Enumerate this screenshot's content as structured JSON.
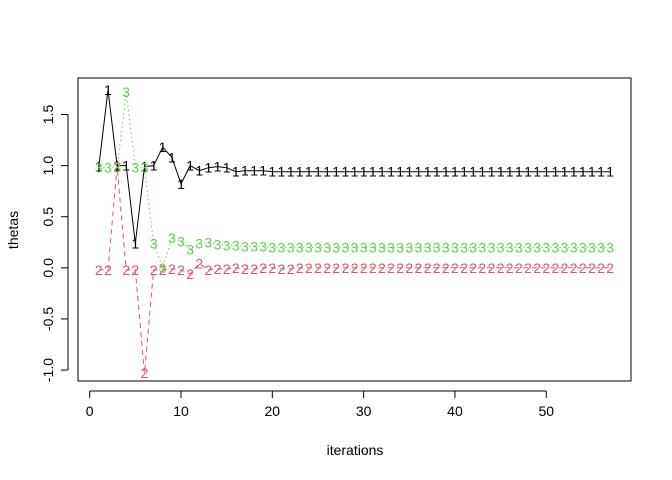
{
  "chart_data": {
    "type": "line",
    "title": "",
    "xlabel": "iterations",
    "ylabel": "thetas",
    "xlim": [
      0,
      57
    ],
    "ylim": [
      -1.05,
      1.8
    ],
    "x_ticks": [
      0,
      10,
      20,
      30,
      40,
      50
    ],
    "y_ticks": [
      -1.0,
      -0.5,
      0.0,
      0.5,
      1.0,
      1.5
    ],
    "x_tick_labels": [
      "0",
      "10",
      "20",
      "30",
      "40",
      "50"
    ],
    "y_tick_labels": [
      "-1.0",
      "-0.5",
      "0.0",
      "0.5",
      "1.0",
      "1.5"
    ],
    "grid": false,
    "legend": "none",
    "series": [
      {
        "marker": "1",
        "color": "#000000",
        "line_style": "solid",
        "x": [
          1,
          2,
          3,
          4,
          5,
          6,
          7,
          8,
          9,
          10,
          11,
          12,
          13,
          14,
          15,
          16,
          17,
          18,
          19,
          20,
          21,
          22,
          23,
          24,
          25,
          26,
          27,
          28,
          29,
          30,
          31,
          32,
          33,
          34,
          35,
          36,
          37,
          38,
          39,
          40,
          41,
          42,
          43,
          44,
          45,
          46,
          47,
          48,
          49,
          50,
          51,
          52,
          53,
          54,
          55,
          56,
          57
        ],
        "values": [
          0.99,
          1.74,
          1.0,
          1.0,
          0.24,
          0.99,
          1.0,
          1.18,
          1.08,
          0.82,
          1.0,
          0.95,
          0.98,
          0.99,
          0.98,
          0.94,
          0.95,
          0.95,
          0.95,
          0.94,
          0.94,
          0.94,
          0.94,
          0.94,
          0.94,
          0.94,
          0.94,
          0.94,
          0.94,
          0.94,
          0.94,
          0.94,
          0.94,
          0.94,
          0.94,
          0.94,
          0.94,
          0.94,
          0.94,
          0.94,
          0.94,
          0.94,
          0.94,
          0.94,
          0.94,
          0.94,
          0.94,
          0.94,
          0.94,
          0.94,
          0.94,
          0.94,
          0.94,
          0.94,
          0.94,
          0.94,
          0.94
        ]
      },
      {
        "marker": "2",
        "color": "#DF536B",
        "line_style": "dashed",
        "x": [
          1,
          2,
          3,
          4,
          5,
          6,
          7,
          8,
          9,
          10,
          11,
          12,
          13,
          14,
          15,
          16,
          17,
          18,
          19,
          20,
          21,
          22,
          23,
          24,
          25,
          26,
          27,
          28,
          29,
          30,
          31,
          32,
          33,
          34,
          35,
          36,
          37,
          38,
          39,
          40,
          41,
          42,
          43,
          44,
          45,
          46,
          47,
          48,
          49,
          50,
          51,
          52,
          53,
          54,
          55,
          56,
          57
        ],
        "values": [
          -0.02,
          -0.02,
          0.99,
          -0.02,
          -0.02,
          -1.03,
          -0.02,
          -0.02,
          -0.01,
          -0.02,
          -0.06,
          0.04,
          -0.02,
          -0.01,
          -0.01,
          0.0,
          -0.01,
          -0.01,
          0.0,
          0.0,
          -0.01,
          -0.01,
          0.0,
          0.0,
          0.0,
          0.0,
          0.0,
          0.0,
          0.0,
          0.0,
          0.0,
          0.0,
          0.0,
          0.0,
          0.0,
          0.0,
          0.0,
          0.0,
          0.0,
          0.0,
          0.0,
          0.0,
          0.0,
          0.0,
          0.0,
          0.0,
          0.0,
          0.0,
          0.0,
          0.0,
          0.0,
          0.0,
          0.0,
          0.0,
          0.0,
          0.0,
          0.0
        ]
      },
      {
        "marker": "3",
        "color": "#61D04F",
        "line_style": "dotted",
        "x": [
          1,
          2,
          3,
          4,
          5,
          6,
          7,
          8,
          9,
          10,
          11,
          12,
          13,
          14,
          15,
          16,
          17,
          18,
          19,
          20,
          21,
          22,
          23,
          24,
          25,
          26,
          27,
          28,
          29,
          30,
          31,
          32,
          33,
          34,
          35,
          36,
          37,
          38,
          39,
          40,
          41,
          42,
          43,
          44,
          45,
          46,
          47,
          48,
          49,
          50,
          51,
          52,
          53,
          54,
          55,
          56,
          57
        ],
        "values": [
          0.98,
          0.98,
          0.98,
          1.72,
          0.98,
          0.98,
          0.24,
          0.0,
          0.29,
          0.26,
          0.18,
          0.24,
          0.25,
          0.23,
          0.22,
          0.22,
          0.21,
          0.21,
          0.21,
          0.2,
          0.2,
          0.2,
          0.2,
          0.2,
          0.2,
          0.2,
          0.2,
          0.2,
          0.2,
          0.2,
          0.2,
          0.2,
          0.2,
          0.2,
          0.2,
          0.2,
          0.2,
          0.2,
          0.2,
          0.2,
          0.2,
          0.2,
          0.2,
          0.2,
          0.2,
          0.2,
          0.2,
          0.2,
          0.2,
          0.2,
          0.2,
          0.2,
          0.2,
          0.2,
          0.2,
          0.2,
          0.2
        ]
      }
    ]
  }
}
